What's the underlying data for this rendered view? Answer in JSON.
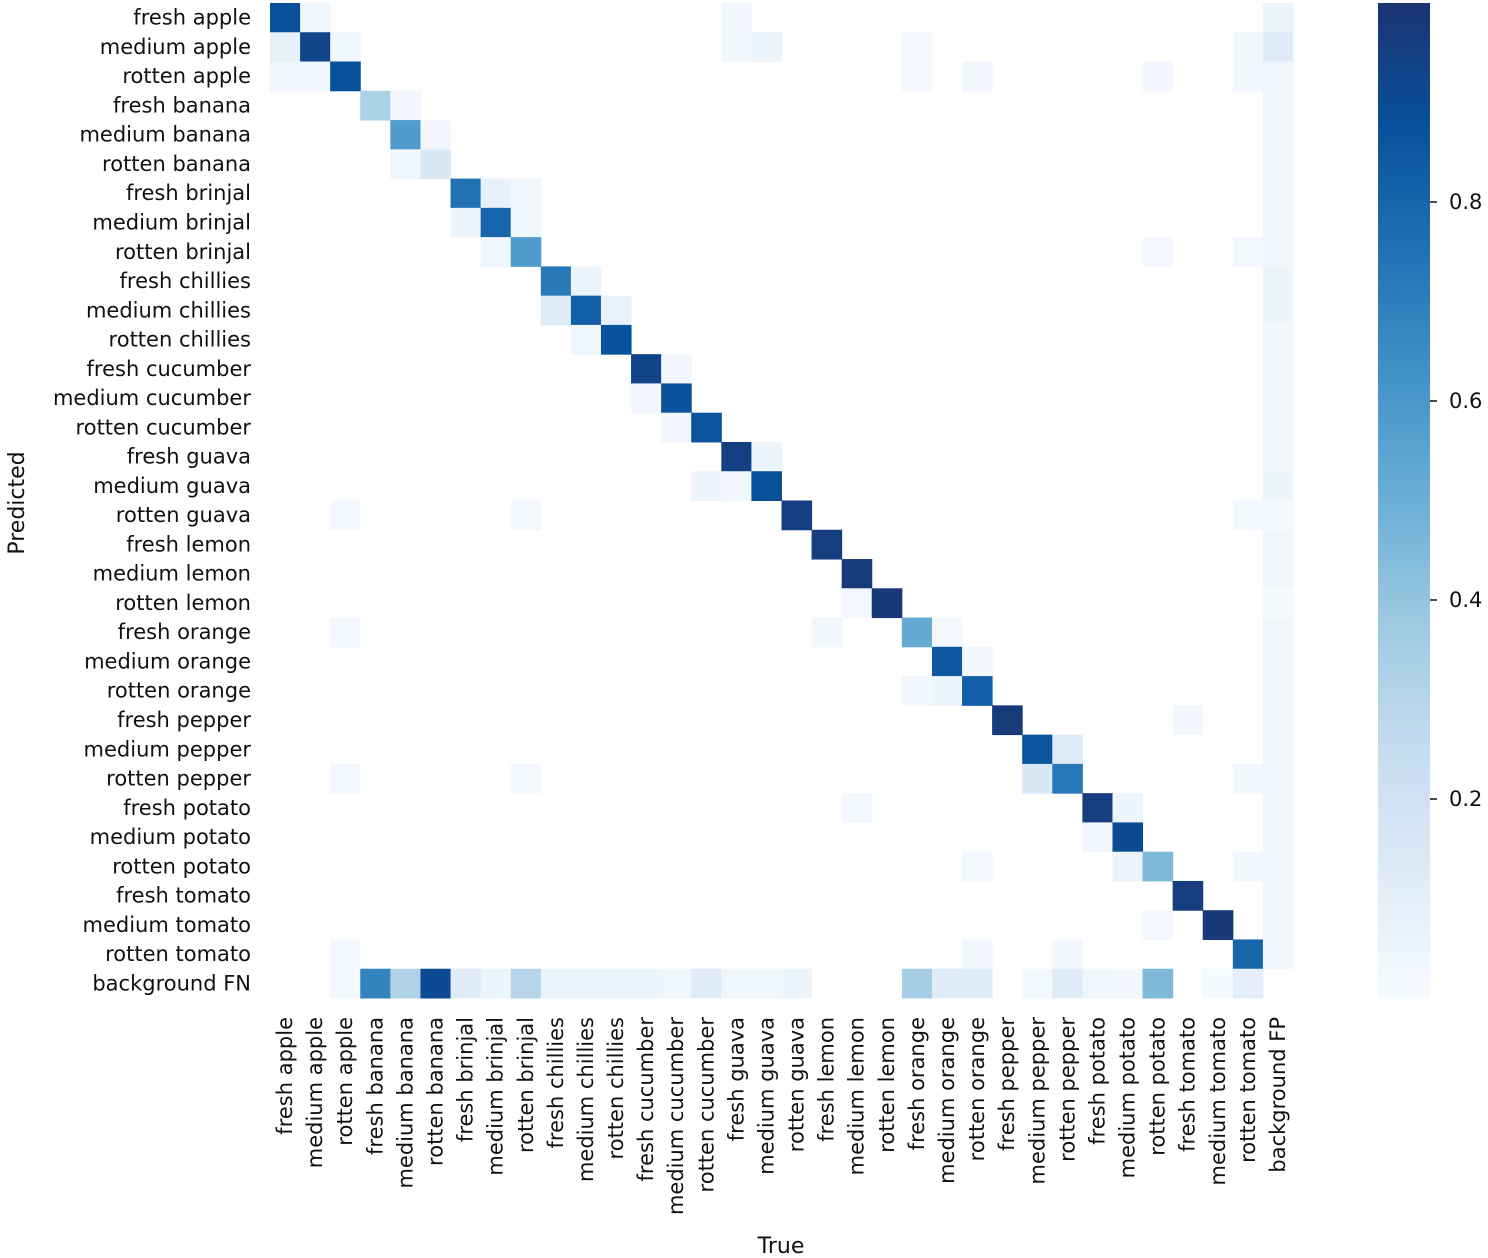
{
  "chart_data": {
    "type": "heatmap",
    "title": "",
    "xlabel": "True",
    "ylabel": "Predicted",
    "colormap": "Blues",
    "color_range": [
      0,
      1
    ],
    "colorbar_ticks": [
      0.2,
      0.4,
      0.6,
      0.8
    ],
    "colorbar_tick_labels": [
      "0.2",
      "0.4",
      "0.6",
      "0.8"
    ],
    "grid": false,
    "labels": [
      "fresh apple",
      "medium apple",
      "rotten apple",
      "fresh banana",
      "medium banana",
      "rotten banana",
      "fresh brinjal",
      "medium brinjal",
      "rotten brinjal",
      "fresh chillies",
      "medium chillies",
      "rotten chillies",
      "fresh cucumber",
      "medium cucumber",
      "rotten cucumber",
      "fresh guava",
      "medium guava",
      "rotten guava",
      "fresh lemon",
      "medium lemon",
      "rotten lemon",
      "fresh orange",
      "medium orange",
      "rotten orange",
      "fresh pepper",
      "medium pepper",
      "rotten pepper",
      "fresh potato",
      "medium potato",
      "rotten potato",
      "fresh tomato",
      "medium tomato",
      "rotten tomato"
    ],
    "row_labels_extra": "background FN",
    "col_labels_extra": "background FP",
    "diagonal": [
      0.88,
      0.93,
      0.88,
      0.33,
      0.58,
      0.15,
      0.75,
      0.8,
      0.58,
      0.72,
      0.82,
      0.87,
      0.93,
      0.87,
      0.86,
      0.95,
      0.88,
      0.95,
      0.96,
      0.97,
      0.98,
      0.52,
      0.85,
      0.82,
      0.97,
      0.86,
      0.72,
      0.96,
      0.9,
      0.45,
      0.96,
      0.98,
      0.8
    ],
    "off_diagonal_cells": [
      [
        0,
        1,
        0.04
      ],
      [
        1,
        0,
        0.08
      ],
      [
        1,
        2,
        0.04
      ],
      [
        2,
        0,
        0.03
      ],
      [
        2,
        1,
        0.03
      ],
      [
        3,
        4,
        0.03
      ],
      [
        4,
        5,
        0.03
      ],
      [
        5,
        4,
        0.04
      ],
      [
        6,
        7,
        0.08
      ],
      [
        6,
        8,
        0.04
      ],
      [
        7,
        6,
        0.05
      ],
      [
        7,
        8,
        0.04
      ],
      [
        8,
        7,
        0.04
      ],
      [
        9,
        10,
        0.05
      ],
      [
        10,
        9,
        0.12
      ],
      [
        10,
        11,
        0.07
      ],
      [
        11,
        10,
        0.04
      ],
      [
        12,
        13,
        0.03
      ],
      [
        13,
        12,
        0.03
      ],
      [
        14,
        13,
        0.03
      ],
      [
        15,
        16,
        0.05
      ],
      [
        16,
        14,
        0.06
      ],
      [
        16,
        15,
        0.03
      ],
      [
        0,
        15,
        0.03
      ],
      [
        1,
        15,
        0.03
      ],
      [
        1,
        16,
        0.05
      ],
      [
        2,
        21,
        0.02
      ],
      [
        2,
        23,
        0.03
      ],
      [
        2,
        29,
        0.03
      ],
      [
        2,
        32,
        0.03
      ],
      [
        1,
        21,
        0.02
      ],
      [
        1,
        32,
        0.03
      ],
      [
        8,
        29,
        0.02
      ],
      [
        8,
        32,
        0.02
      ],
      [
        17,
        2,
        0.02
      ],
      [
        17,
        8,
        0.02
      ],
      [
        17,
        32,
        0.02
      ],
      [
        20,
        19,
        0.02
      ],
      [
        21,
        2,
        0.02
      ],
      [
        21,
        18,
        0.03
      ],
      [
        21,
        22,
        0.02
      ],
      [
        22,
        23,
        0.03
      ],
      [
        23,
        21,
        0.03
      ],
      [
        23,
        22,
        0.05
      ],
      [
        24,
        30,
        0.03
      ],
      [
        25,
        26,
        0.12
      ],
      [
        26,
        25,
        0.15
      ],
      [
        26,
        2,
        0.02
      ],
      [
        26,
        8,
        0.02
      ],
      [
        26,
        32,
        0.03
      ],
      [
        27,
        19,
        0.02
      ],
      [
        27,
        28,
        0.05
      ],
      [
        28,
        27,
        0.03
      ],
      [
        29,
        28,
        0.06
      ],
      [
        29,
        23,
        0.02
      ],
      [
        29,
        32,
        0.03
      ],
      [
        31,
        29,
        0.02
      ],
      [
        32,
        2,
        0.02
      ],
      [
        32,
        23,
        0.03
      ],
      [
        32,
        26,
        0.03
      ]
    ],
    "background_fn_row": [
      0,
      0,
      0.02,
      0.68,
      0.32,
      0.9,
      0.12,
      0.05,
      0.3,
      0.06,
      0.06,
      0.05,
      0.05,
      0.04,
      0.12,
      0.04,
      0.04,
      0.05,
      0,
      0,
      0,
      0.35,
      0.12,
      0.12,
      0,
      0.02,
      0.12,
      0.04,
      0.03,
      0.45,
      0,
      0.01,
      0.1
    ],
    "background_fp_col": [
      0.06,
      0.12,
      0.04,
      0.03,
      0.04,
      0.03,
      0.03,
      0.03,
      0.03,
      0.05,
      0.05,
      0.03,
      0.03,
      0.03,
      0.04,
      0.04,
      0.05,
      0.01,
      0.04,
      0.03,
      0.01,
      0.04,
      0.04,
      0.04,
      0.03,
      0.04,
      0.04,
      0.03,
      0.03,
      0.04,
      0.03,
      0.03,
      0.03
    ]
  }
}
